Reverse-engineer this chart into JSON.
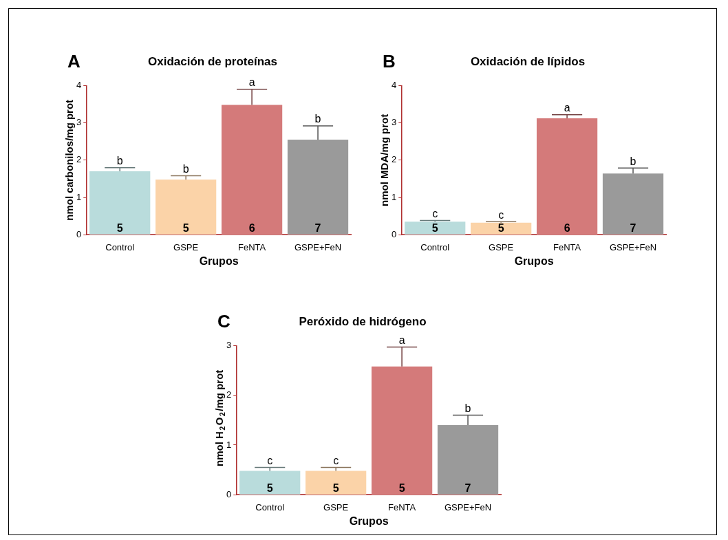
{
  "chart_data": [
    {
      "type": "bar",
      "title": "Oxidación de proteínas",
      "xlabel": "Grupos",
      "ylabel": "nmol carbonilos/mg prot",
      "categories": [
        "Control",
        "GSPE",
        "FeNTA",
        "GSPE+FeN"
      ],
      "values": [
        1.7,
        1.48,
        3.48,
        2.55
      ],
      "colors": [
        "#b9dcdc",
        "#fbd3a8",
        "#d47a7a",
        "#9a9a9a"
      ],
      "errors": [
        [
          1.7,
          1.8
        ],
        [
          1.48,
          1.58
        ],
        [
          3.48,
          3.9
        ],
        [
          2.55,
          2.92
        ]
      ],
      "ylim": [
        0,
        4
      ],
      "yticks": [
        0,
        1,
        2,
        3,
        4
      ],
      "grid": false,
      "legend": false,
      "annotations": [
        "A",
        {
          "text": "b",
          "x": "Control",
          "y": 1.8
        },
        {
          "text": "b",
          "x": "GSPE",
          "y": 1.58
        },
        {
          "text": "a",
          "x": "FeNTA",
          "y": 3.9
        },
        {
          "text": "b",
          "x": "GSPE+FeN",
          "y": 2.92
        },
        {
          "text": "5",
          "x": "Control",
          "y": 0
        },
        {
          "text": "5",
          "x": "GSPE",
          "y": 0
        },
        {
          "text": "6",
          "x": "FeNTA",
          "y": 0
        },
        {
          "text": "7",
          "x": "GSPE+FeN",
          "y": 0
        }
      ]
    },
    {
      "type": "bar",
      "title": "Oxidación de lípidos",
      "xlabel": "Grupos",
      "ylabel": "nmol MDA/mg prot",
      "categories": [
        "Control",
        "GSPE",
        "FeNTA",
        "GSPE+FeN"
      ],
      "values": [
        0.35,
        0.32,
        3.12,
        1.64
      ],
      "colors": [
        "#b9dcdc",
        "#fbd3a8",
        "#d47a7a",
        "#9a9a9a"
      ],
      "errors": [
        [
          0.35,
          0.38
        ],
        [
          0.32,
          0.35
        ],
        [
          3.12,
          3.22
        ],
        [
          1.64,
          1.79
        ]
      ],
      "ylim": [
        0,
        4
      ],
      "yticks": [
        0,
        1,
        2,
        3,
        4
      ],
      "grid": false,
      "legend": false,
      "annotations": [
        "B",
        {
          "text": "c",
          "x": "Control",
          "y": 0.38
        },
        {
          "text": "c",
          "x": "GSPE",
          "y": 0.35
        },
        {
          "text": "a",
          "x": "FeNTA",
          "y": 3.22
        },
        {
          "text": "b",
          "x": "GSPE+FeN",
          "y": 1.79
        },
        {
          "text": "5",
          "x": "Control",
          "y": 0
        },
        {
          "text": "5",
          "x": "GSPE",
          "y": 0
        },
        {
          "text": "6",
          "x": "FeNTA",
          "y": 0
        },
        {
          "text": "7",
          "x": "GSPE+FeN",
          "y": 0
        }
      ]
    },
    {
      "type": "bar",
      "title": "Peróxido de hidrógeno",
      "xlabel": "Grupos",
      "ylabel": "nmol H$_{2}$O$_{2}$/mg prot",
      "categories": [
        "Control",
        "GSPE",
        "FeNTA",
        "GSPE+FeN"
      ],
      "values": [
        0.48,
        0.48,
        2.58,
        1.4
      ],
      "colors": [
        "#b9dcdc",
        "#fbd3a8",
        "#d47a7a",
        "#9a9a9a"
      ],
      "errors": [
        [
          0.48,
          0.55
        ],
        [
          0.48,
          0.55
        ],
        [
          2.58,
          2.97
        ],
        [
          1.4,
          1.6
        ]
      ],
      "ylim": [
        0,
        3
      ],
      "yticks": [
        0,
        1,
        2,
        3
      ],
      "grid": false,
      "legend": false,
      "annotations": [
        "C",
        {
          "text": "c",
          "x": "Control",
          "y": 0.55
        },
        {
          "text": "c",
          "x": "GSPE",
          "y": 0.55
        },
        {
          "text": "a",
          "x": "FeNTA",
          "y": 2.97
        },
        {
          "text": "b",
          "x": "GSPE+FeN",
          "y": 1.6
        },
        {
          "text": "5",
          "x": "Control",
          "y": 0
        },
        {
          "text": "5",
          "x": "GSPE",
          "y": 0
        },
        {
          "text": "5",
          "x": "FeNTA",
          "y": 0
        },
        {
          "text": "7",
          "x": "GSPE+FeN",
          "y": 0
        }
      ]
    }
  ]
}
